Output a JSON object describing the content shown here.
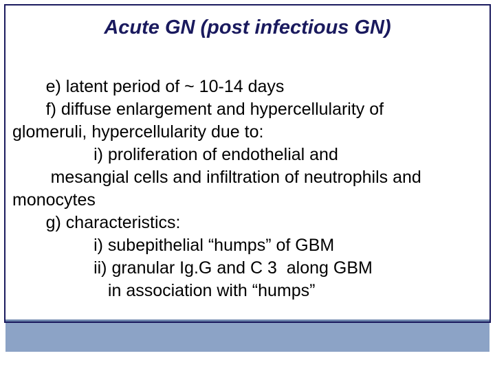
{
  "slide": {
    "title": "Acute GN (post infectious GN)",
    "title_color": "#1a1a5e",
    "title_fontsize": 29,
    "title_italic": true,
    "title_bold": true,
    "border_color": "#1a1a5e",
    "background_color": "#ffffff",
    "body_fontsize": 25,
    "body_color": "#000000",
    "footer_band_color": "#8ca3c6",
    "footer_line_color": "#6b84ab",
    "lines": {
      "l1": "       e) latent period of ~ 10-14 days",
      "l2": "       f) diffuse enlargement and hypercellularity of",
      "l3": "glomeruli, hypercellularity due to:",
      "l4": "                 i) proliferation of endothelial and",
      "l5": "        mesangial cells and infiltration of neutrophils and",
      "l6": "monocytes",
      "l7": "       g) characteristics:",
      "l8": "                 i) subepithelial “humps” of GBM",
      "l9": "                 ii) granular Ig.G and C 3  along GBM",
      "l10": "                    in association with “humps”"
    }
  }
}
